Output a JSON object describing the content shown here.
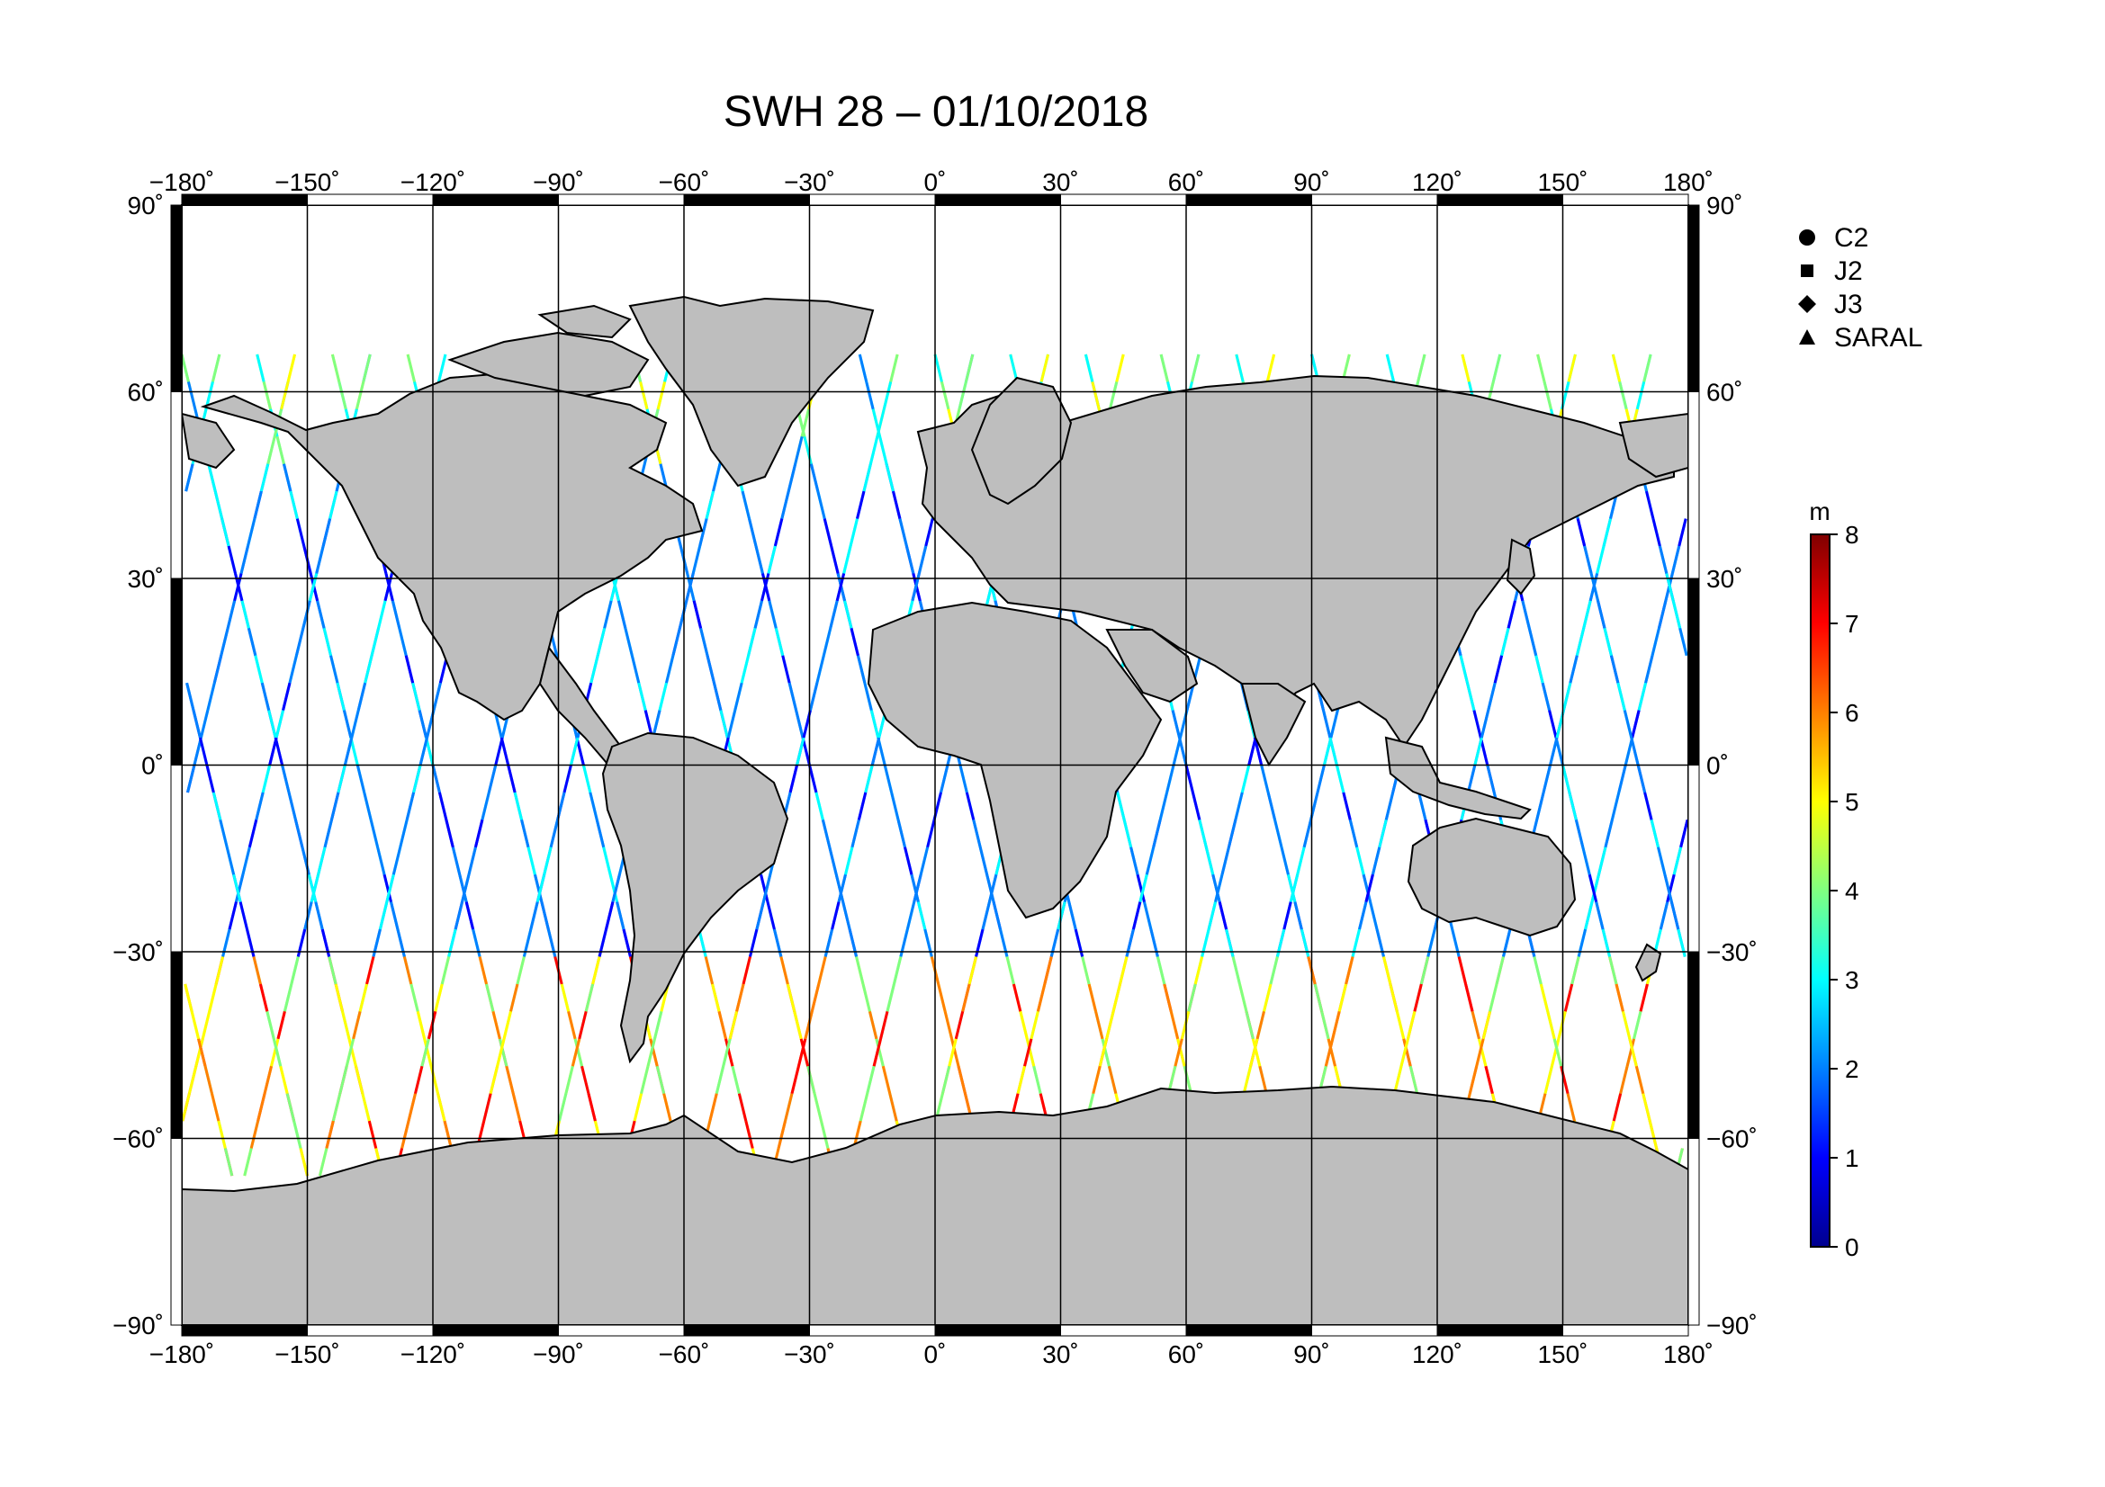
{
  "title": "SWH 28 – 01/10/2018",
  "lon_ticks": [
    {
      "value": -180,
      "label": "−180˚"
    },
    {
      "value": -150,
      "label": "−150˚"
    },
    {
      "value": -120,
      "label": "−120˚"
    },
    {
      "value": -90,
      "label": "−90˚"
    },
    {
      "value": -60,
      "label": "−60˚"
    },
    {
      "value": -30,
      "label": "−30˚"
    },
    {
      "value": 0,
      "label": "0˚"
    },
    {
      "value": 30,
      "label": "30˚"
    },
    {
      "value": 60,
      "label": "60˚"
    },
    {
      "value": 90,
      "label": "90˚"
    },
    {
      "value": 120,
      "label": "120˚"
    },
    {
      "value": 150,
      "label": "150˚"
    },
    {
      "value": 180,
      "label": "180˚"
    }
  ],
  "lat_ticks": [
    {
      "value": 90,
      "label": "90˚"
    },
    {
      "value": 60,
      "label": "60˚"
    },
    {
      "value": 30,
      "label": "30˚"
    },
    {
      "value": 0,
      "label": "0˚"
    },
    {
      "value": -30,
      "label": "−30˚"
    },
    {
      "value": -60,
      "label": "−60˚"
    },
    {
      "value": -90,
      "label": "−90˚"
    }
  ],
  "legend": [
    {
      "label": "C2",
      "symbol": "circle"
    },
    {
      "label": "J2",
      "symbol": "square"
    },
    {
      "label": "J3",
      "symbol": "diamond"
    },
    {
      "label": "SARAL",
      "symbol": "triangle"
    }
  ],
  "colorbar": {
    "unit": "m",
    "min": 0,
    "max": 8,
    "ticks": [
      "0",
      "1",
      "2",
      "3",
      "4",
      "5",
      "6",
      "7",
      "8"
    ],
    "colors": [
      "#00008f",
      "#0000ff",
      "#0080ff",
      "#00ffff",
      "#80ff80",
      "#ffff00",
      "#ff8000",
      "#ff0000",
      "#800000"
    ]
  },
  "land_color": "#bebebe",
  "ocean_color": "#ffffff"
}
